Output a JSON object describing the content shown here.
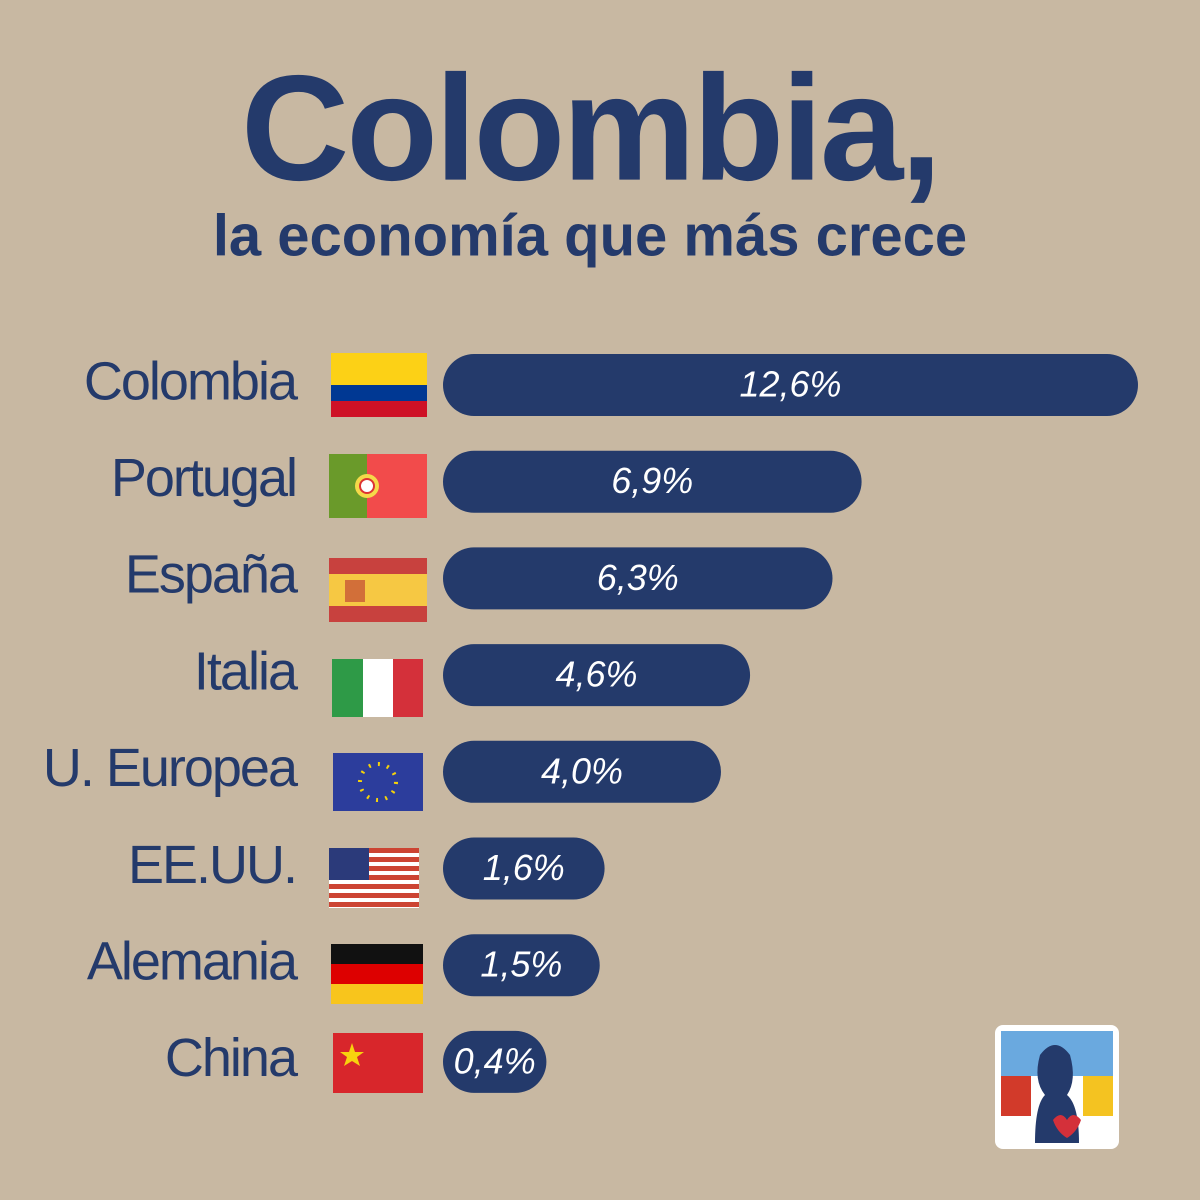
{
  "chart_data": {
    "type": "bar",
    "orientation": "horizontal",
    "title": "Colombia,",
    "subtitle": "la economía que más crece",
    "categories": [
      "Colombia",
      "Portugal",
      "España",
      "Italia",
      "U. Europea",
      "EE.UU.",
      "Alemania",
      "China"
    ],
    "values": [
      12.6,
      6.9,
      6.3,
      4.6,
      4.0,
      1.6,
      1.5,
      0.4
    ],
    "value_labels": [
      "12,6%",
      "6,9%",
      "6,3%",
      "4,6%",
      "4,0%",
      "1,6%",
      "1,5%",
      "0,4%"
    ],
    "color": "#243a6b"
  }
}
